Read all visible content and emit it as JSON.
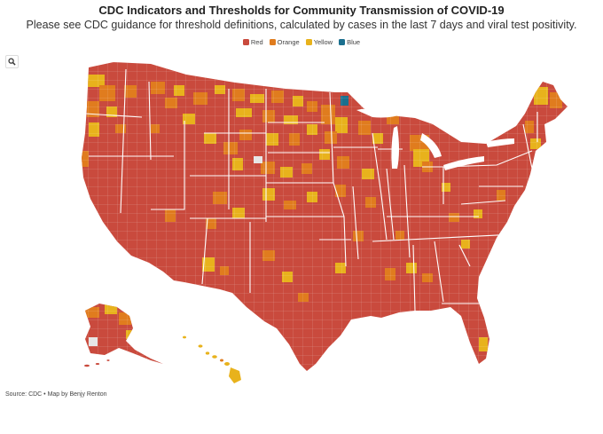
{
  "title": "CDC Indicators and Thresholds for Community Transmission of COVID-19",
  "subtitle": "Please see CDC guidance for threshold definitions, calculated by cases in the last 7 days and viral test positivity.",
  "legend": [
    {
      "label": "Red",
      "color": "#c94a3d"
    },
    {
      "label": "Orange",
      "color": "#e07c1e"
    },
    {
      "label": "Yellow",
      "color": "#e8b21c"
    },
    {
      "label": "Blue",
      "color": "#1b6f8e"
    }
  ],
  "zoom_button": {
    "icon": "search-icon"
  },
  "source": "Source: CDC • Map by Benjy Renton",
  "colors": {
    "red": "#c94a3d",
    "orange": "#e07c1e",
    "yellow": "#e8b21c",
    "blue": "#1b6f8e",
    "no_data": "#e6e6e6",
    "border": "#ffffff"
  }
}
